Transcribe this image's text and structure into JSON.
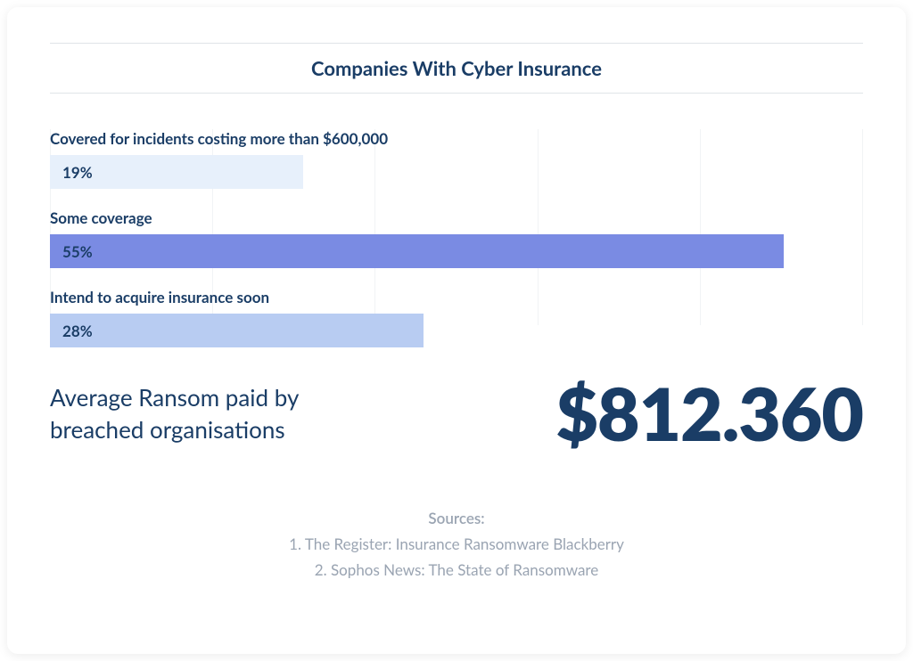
{
  "colors": {
    "title": "#1a3d66",
    "label": "#1a3d66",
    "stat_label": "#1a3d66",
    "stat_value": "#1a3d66",
    "sources": "#9aa4b2",
    "grid": "#f1f3f5",
    "card_bg": "#ffffff"
  },
  "chart": {
    "type": "bar",
    "title": "Companies With Cyber Insurance",
    "xlim": [
      0,
      100
    ],
    "grid_divisions": 6,
    "bars": [
      {
        "label": "Covered for incidents costing more than $600,000",
        "value": 19,
        "display": "19%",
        "bar_color": "#e7f0fb",
        "text_color": "#1a3d66"
      },
      {
        "label": "Some coverage",
        "value": 55,
        "display": "55%",
        "bar_color": "#7a8be3",
        "text_color": "#1a3d66"
      },
      {
        "label": "Intend to acquire insurance soon",
        "value": 28,
        "display": "28%",
        "bar_color": "#b8ccf2",
        "text_color": "#1a3d66"
      }
    ]
  },
  "stat": {
    "label": "Average Ransom paid by breached organisations",
    "value": "$812.360"
  },
  "sources": {
    "heading": "Sources:",
    "items": [
      "1. The Register: Insurance Ransomware Blackberry",
      "2. Sophos News: The State of Ransomware"
    ]
  }
}
